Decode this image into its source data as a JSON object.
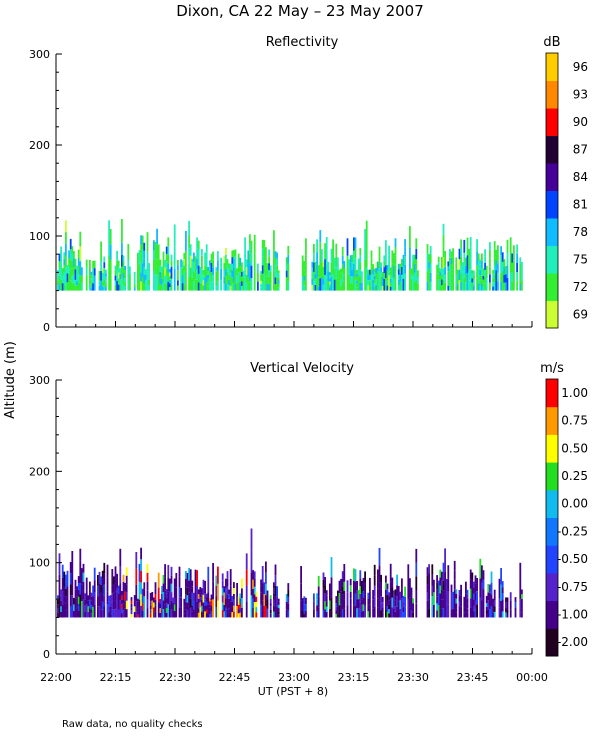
{
  "figure": {
    "title": "Dixon, CA 22 May – 23 May 2007",
    "ylabel": "Altitude (m)",
    "xlabel": "UT  (PST + 8)",
    "footnote": "Raw data, no quality checks"
  },
  "chart_data": [
    {
      "type": "heatmap",
      "title": "Reflectivity",
      "colorbar_unit": "dB",
      "x_ticks": [
        "22:00",
        "22:15",
        "22:30",
        "22:45",
        "23:00",
        "23:15",
        "23:30",
        "23:45",
        "00:00"
      ],
      "y_ticks": [
        "0",
        "100",
        "200",
        "300"
      ],
      "ylim": [
        0,
        300
      ],
      "colorbar": {
        "labels": [
          "69",
          "72",
          "75",
          "78",
          "81",
          "84",
          "87",
          "90",
          "93",
          "96"
        ],
        "colors": [
          "#ccff33",
          "#33ee33",
          "#22eebb",
          "#11bbff",
          "#0044ff",
          "#440099",
          "#220033",
          "#ff0000",
          "#ff8800",
          "#ffcc00"
        ]
      },
      "echo_base_altitude_m": 40,
      "typical_top_altitude_m": 100,
      "max_top_altitude_m": 140
    },
    {
      "type": "heatmap",
      "title": "Vertical Velocity",
      "colorbar_unit": "m/s",
      "x_ticks": [
        "22:00",
        "22:15",
        "22:30",
        "22:45",
        "23:00",
        "23:15",
        "23:30",
        "23:45",
        "00:00"
      ],
      "y_ticks": [
        "0",
        "100",
        "200",
        "300"
      ],
      "ylim": [
        0,
        300
      ],
      "colorbar": {
        "labels": [
          "-2.00",
          "-1.00",
          "-0.75",
          "-0.50",
          "-0.25",
          "0.00",
          "0.25",
          "0.50",
          "0.75",
          "1.00"
        ],
        "colors": [
          "#220022",
          "#440088",
          "#5522cc",
          "#2244ff",
          "#1177ff",
          "#11bbee",
          "#22dd22",
          "#ffff00",
          "#ff9900",
          "#ff0000"
        ]
      },
      "echo_base_altitude_m": 40,
      "typical_top_altitude_m": 100,
      "max_top_altitude_m": 140
    }
  ]
}
